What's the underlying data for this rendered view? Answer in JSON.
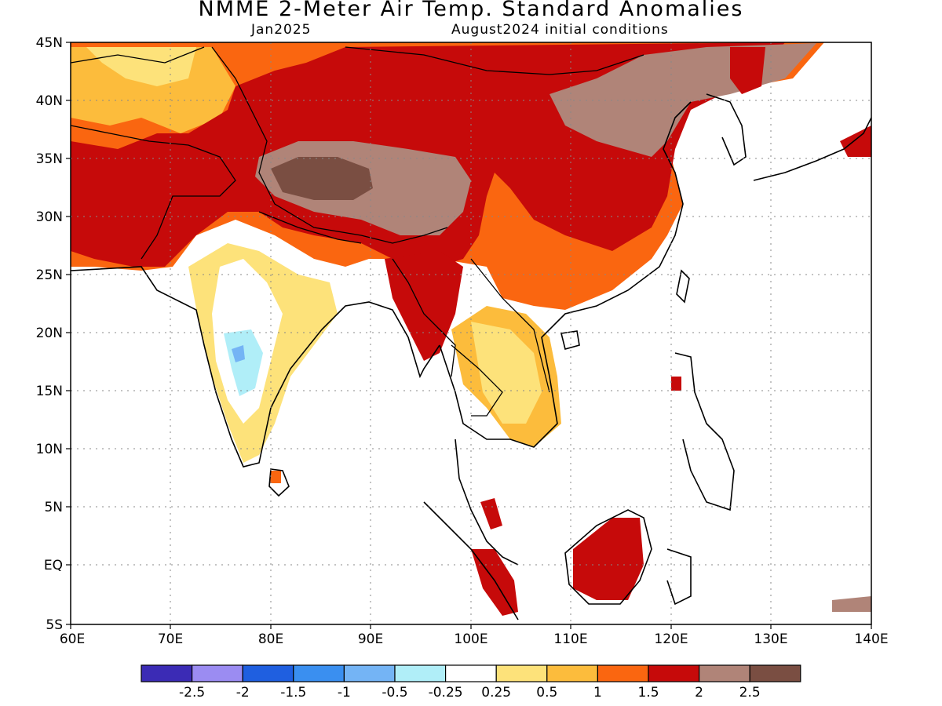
{
  "title": "NMME 2-Meter Air Temp. Standard Anomalies",
  "subtitle_left": "Jan2025",
  "subtitle_right": "August2024 initial conditions",
  "map": {
    "lon_range": [
      60,
      140
    ],
    "lat_range": [
      -5,
      45
    ],
    "gridlines": "dotted",
    "lat_labels": [
      "45N",
      "40N",
      "35N",
      "30N",
      "25N",
      "20N",
      "15N",
      "10N",
      "5N",
      "EQ",
      "5S"
    ],
    "lon_labels": [
      "60E",
      "70E",
      "80E",
      "90E",
      "100E",
      "110E",
      "120E",
      "130E",
      "140E"
    ]
  },
  "colorbar": {
    "colors": [
      "#3b2bb5",
      "#9b8cf2",
      "#1f5fe0",
      "#3a8ff0",
      "#74b4f5",
      "#b0eef8",
      "#ffffff",
      "#fde27a",
      "#fcbc3c",
      "#fa6610",
      "#c60a0a",
      "#b08478",
      "#7a4e42"
    ],
    "labels": [
      "-2.5",
      "-2",
      "-1.5",
      "-1",
      "-0.5",
      "-0.25",
      "0.25",
      "0.5",
      "1",
      "1.5",
      "2",
      "2.5"
    ]
  }
}
